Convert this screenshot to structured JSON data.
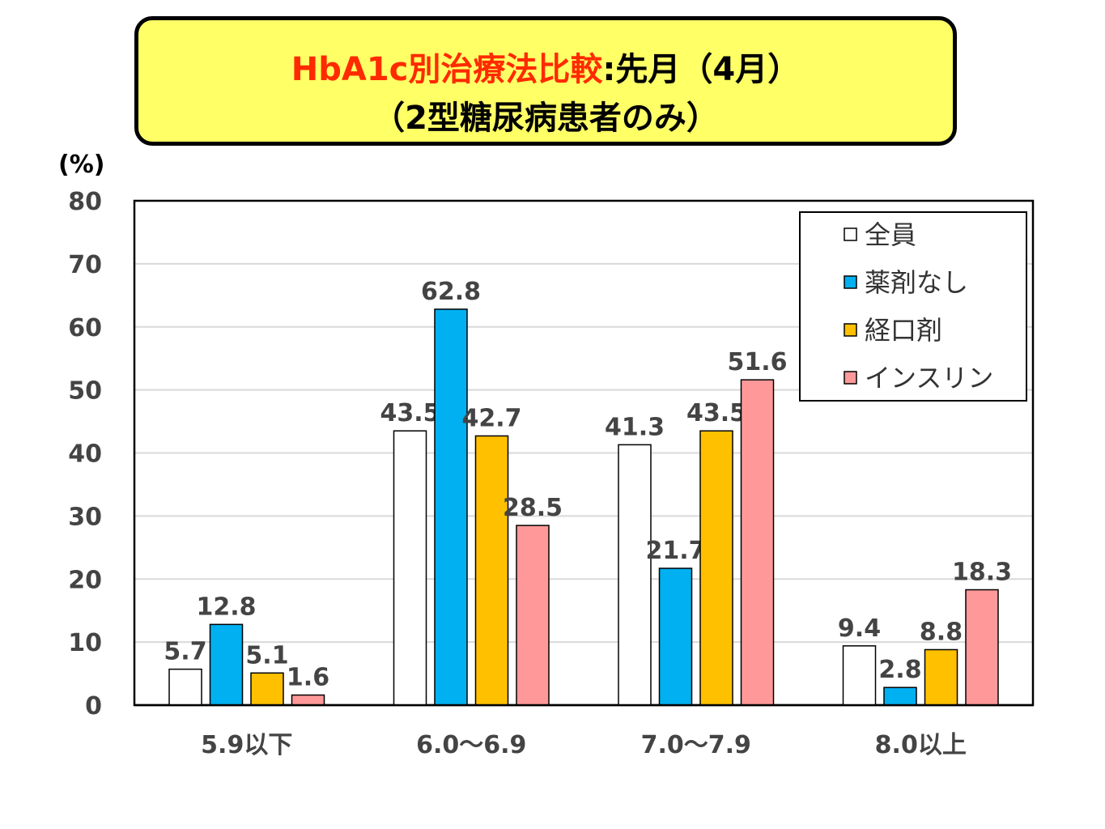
{
  "title": {
    "line1_red": "HbA1c別治療法比較",
    "line1_black": ":先月（4月）",
    "line2": "（2型糖尿病患者のみ）"
  },
  "chart_data": {
    "type": "bar",
    "ylabel": "(%)",
    "ylim": [
      0,
      80
    ],
    "yticks": [
      0,
      10,
      20,
      30,
      40,
      50,
      60,
      70,
      80
    ],
    "grid": true,
    "legend_position": "top-right",
    "categories": [
      "5.9以下",
      "6.0～6.9",
      "7.0～7.9",
      "8.0以上"
    ],
    "series": [
      {
        "name": "全員",
        "color": "#ffffff",
        "values": [
          5.7,
          43.5,
          41.3,
          9.4
        ]
      },
      {
        "name": "薬剤なし",
        "color": "#00b0f0",
        "values": [
          12.8,
          62.8,
          21.7,
          2.8
        ]
      },
      {
        "name": "経口剤",
        "color": "#ffc000",
        "values": [
          5.1,
          42.7,
          43.5,
          8.8
        ]
      },
      {
        "name": "インスリン",
        "color": "#ff9999",
        "values": [
          1.6,
          28.5,
          51.6,
          18.3
        ]
      }
    ]
  }
}
